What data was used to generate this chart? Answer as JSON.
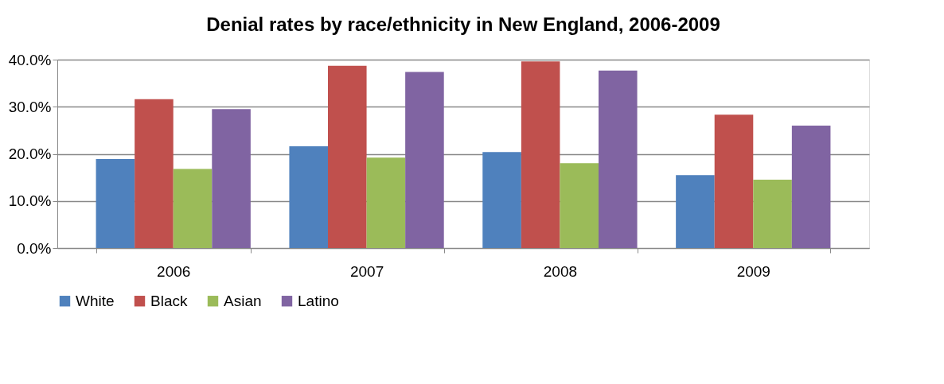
{
  "chart_data": {
    "type": "bar",
    "title": "Denial rates by race/ethnicity in New England, 2006-2009",
    "categories": [
      "2006",
      "2007",
      "2008",
      "2009"
    ],
    "series": [
      {
        "name": "White",
        "color": "#4f81bd",
        "values": [
          18.9,
          21.6,
          20.4,
          15.5
        ]
      },
      {
        "name": "Black",
        "color": "#c0504d",
        "values": [
          31.6,
          38.7,
          39.6,
          28.3
        ]
      },
      {
        "name": "Asian",
        "color": "#9bbb59",
        "values": [
          16.8,
          19.2,
          18.0,
          14.5
        ]
      },
      {
        "name": "Latino",
        "color": "#8064a2",
        "values": [
          29.5,
          37.4,
          37.7,
          26.0
        ]
      }
    ],
    "ylim": [
      0,
      40
    ],
    "yticks": [
      {
        "value": 0,
        "label": "0.0%"
      },
      {
        "value": 10,
        "label": "10.0%"
      },
      {
        "value": 20,
        "label": "20.0%"
      },
      {
        "value": 30,
        "label": "30.0%"
      },
      {
        "value": 40,
        "label": "40.0%"
      }
    ],
    "grid": "y",
    "legend": "bottom"
  }
}
